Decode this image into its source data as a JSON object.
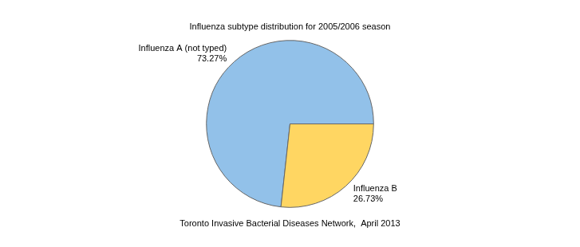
{
  "chart_data": {
    "type": "pie",
    "title": "Influenza subtype distribution for 2005/2006 season",
    "caption": "Toronto Invasive Bacterial Diseases Network,  April 2013",
    "categories": [
      "Influenza A (not typed)",
      "Influenza B"
    ],
    "values": [
      73.27,
      26.73
    ],
    "value_labels": [
      "73.27%",
      "26.73%"
    ],
    "colors": [
      "#92c1e9",
      "#ffd662"
    ],
    "data_labels": true
  }
}
